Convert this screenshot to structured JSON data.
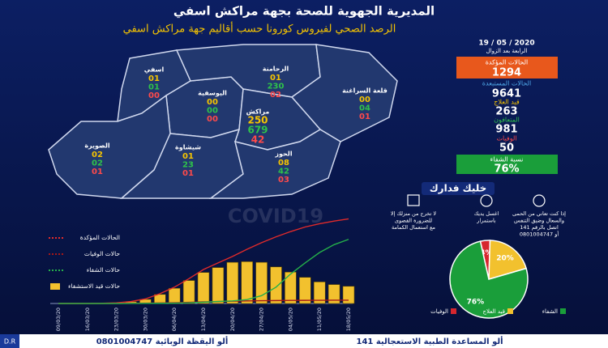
{
  "header": {
    "title": "المديرية الجهوية للصحة بجهة مراكش اسفي",
    "subtitle": "الرصد الصحي لفيروس كورونا حسب أقاليم جهة مراكش اسفي",
    "date": "19 / 05 / 2020",
    "time": "الرابعة بعد الزوال"
  },
  "stats": [
    {
      "label": "الحالات المؤكدة",
      "value": 1294
    },
    {
      "label": "الحالات المستبعدة",
      "value": 9641
    },
    {
      "label": "قيد العلاج",
      "value": 263
    },
    {
      "label": "المتعافون",
      "value": 981
    },
    {
      "label": "الوفيات",
      "value": 50
    },
    {
      "label": "نسبة الشفاء",
      "value": "76%"
    }
  ],
  "map": {
    "watermark": "COVID19",
    "regions": [
      {
        "name": "اسفي",
        "values": [
          "01",
          "01",
          "00"
        ]
      },
      {
        "name": "اليوسفية",
        "values": [
          "00",
          "00",
          "00"
        ]
      },
      {
        "name": "الرحامنة",
        "values": [
          "01",
          "230",
          "02"
        ]
      },
      {
        "name": "قلعة السراغنة",
        "values": [
          "00",
          "04",
          "01"
        ]
      },
      {
        "name": "مراكش",
        "values": [
          "250",
          "679",
          "42"
        ]
      },
      {
        "name": "الصويرة",
        "values": [
          "02",
          "02",
          "01"
        ]
      },
      {
        "name": "شيشاوة",
        "values": [
          "01",
          "23",
          "01"
        ]
      },
      {
        "name": "الحوز",
        "values": [
          "08",
          "42",
          "03"
        ]
      }
    ]
  },
  "advice": {
    "title": "خليك فدارك",
    "items": [
      {
        "lines": [
          "إذا كنت تعاني من الحمى",
          "والسعال وضيق التنفس",
          "اتصل بالرقم 141",
          "أو 0801004747"
        ]
      },
      {
        "lines": [
          "اغسل يديك",
          "باستمرار"
        ]
      },
      {
        "lines": [
          "لا تخرج من منزلك إلا",
          "للضرورة القصوى",
          "مع استعمال الكمامة"
        ]
      }
    ]
  },
  "footer": {
    "items": [
      "ألو المساعدة الطبية الاستعجالية 141",
      "ألو اليقظة الوبائية 0801004747"
    ],
    "credit": "D.R"
  },
  "chart_data": [
    {
      "type": "line",
      "categories": [
        "09/03/20",
        null,
        "16/03/20",
        null,
        "23/03/20",
        null,
        "30/03/20",
        null,
        "06/04/20",
        null,
        "13/04/20",
        null,
        "20/04/20",
        null,
        "27/04/20",
        null,
        "04/05/20",
        null,
        "11/05/20",
        null,
        "18/05/20"
      ],
      "ylim": [
        0,
        1300
      ],
      "series": [
        {
          "name": "الحالات المؤكدة",
          "type": "line",
          "color": "#e02a2a",
          "values": [
            0,
            0,
            1,
            3,
            10,
            30,
            70,
            150,
            250,
            380,
            520,
            620,
            720,
            830,
            930,
            1020,
            1100,
            1170,
            1220,
            1260,
            1294
          ]
        },
        {
          "name": "حالات الوفيات",
          "type": "line",
          "color": "#a51818",
          "values": [
            0,
            0,
            0,
            0,
            1,
            3,
            5,
            8,
            12,
            18,
            25,
            30,
            35,
            40,
            43,
            45,
            47,
            48,
            49,
            50,
            50
          ]
        },
        {
          "name": "حالات الشفاء",
          "type": "line",
          "color": "#25b04a",
          "values": [
            0,
            0,
            0,
            0,
            0,
            1,
            2,
            3,
            5,
            10,
            20,
            30,
            40,
            60,
            120,
            250,
            450,
            620,
            780,
            900,
            981
          ]
        },
        {
          "name": "حالات قيد الاستشفاء",
          "type": "bar",
          "color": "#f2c12e",
          "values": [
            0,
            0,
            1,
            3,
            9,
            27,
            63,
            139,
            233,
            352,
            475,
            550,
            630,
            640,
            630,
            560,
            480,
            400,
            330,
            290,
            263
          ]
        }
      ]
    },
    {
      "type": "pie",
      "categories": [
        "الوفيات",
        "قيد العلاج",
        "الشفاء"
      ],
      "values": [
        4,
        20,
        76
      ],
      "value_labels": [
        "4%",
        "20%",
        "76%"
      ],
      "colors": [
        "#d6262e",
        "#f2c12e",
        "#1a9e3a"
      ]
    }
  ]
}
